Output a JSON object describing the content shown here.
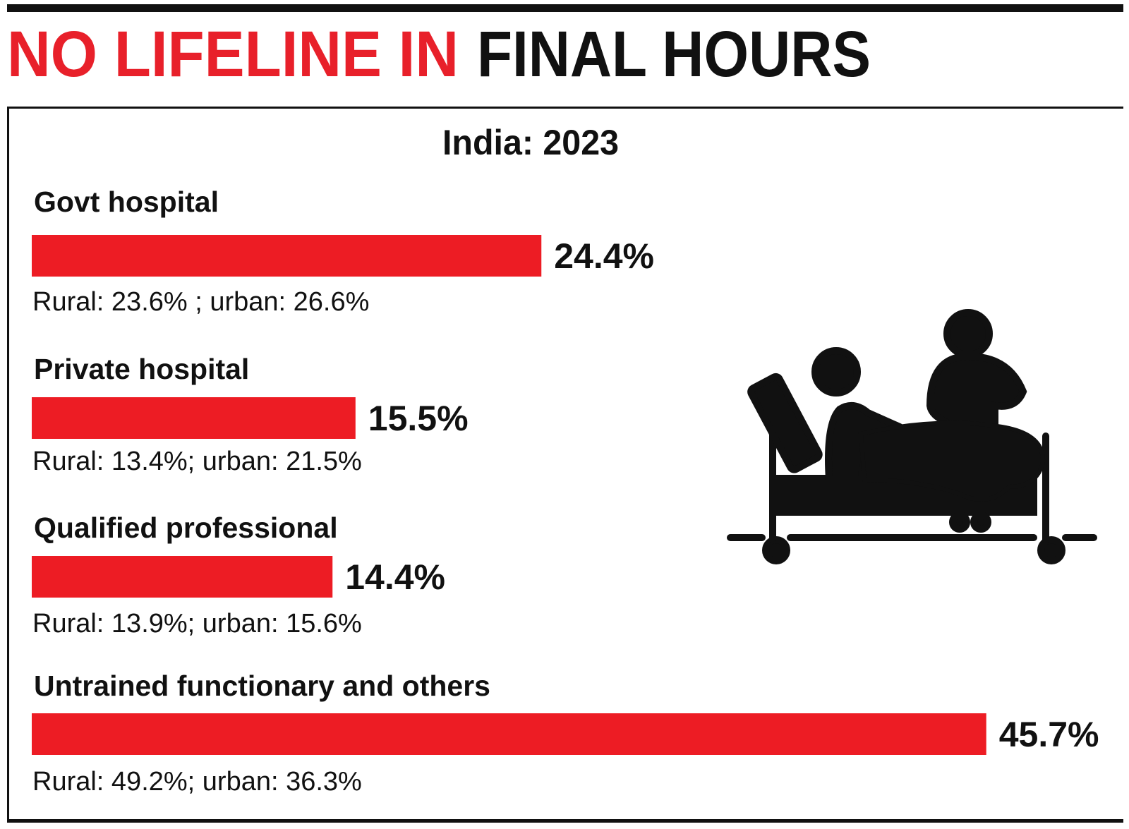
{
  "chart_data": {
    "type": "bar",
    "orientation": "horizontal",
    "title": [
      "NO LIFELINE IN",
      "FINAL HOURS"
    ],
    "title_colors": [
      "#e8202a",
      "#111111"
    ],
    "subtitle": "India: 2023",
    "categories": [
      "Govt hospital",
      "Private hospital",
      "Qualified professional",
      "Untrained functionary and others"
    ],
    "values": [
      24.4,
      15.5,
      14.4,
      45.7
    ],
    "value_labels": [
      "24.4%",
      "15.5%",
      "14.4%",
      "45.7%"
    ],
    "notes": [
      "Rural: 23.6% ; urban: 26.6%",
      "Rural: 13.4%; urban: 21.5%",
      "Rural: 13.9%; urban: 15.6%",
      "Rural: 49.2%; urban: 36.3%"
    ],
    "color": "#ed1c24"
  }
}
